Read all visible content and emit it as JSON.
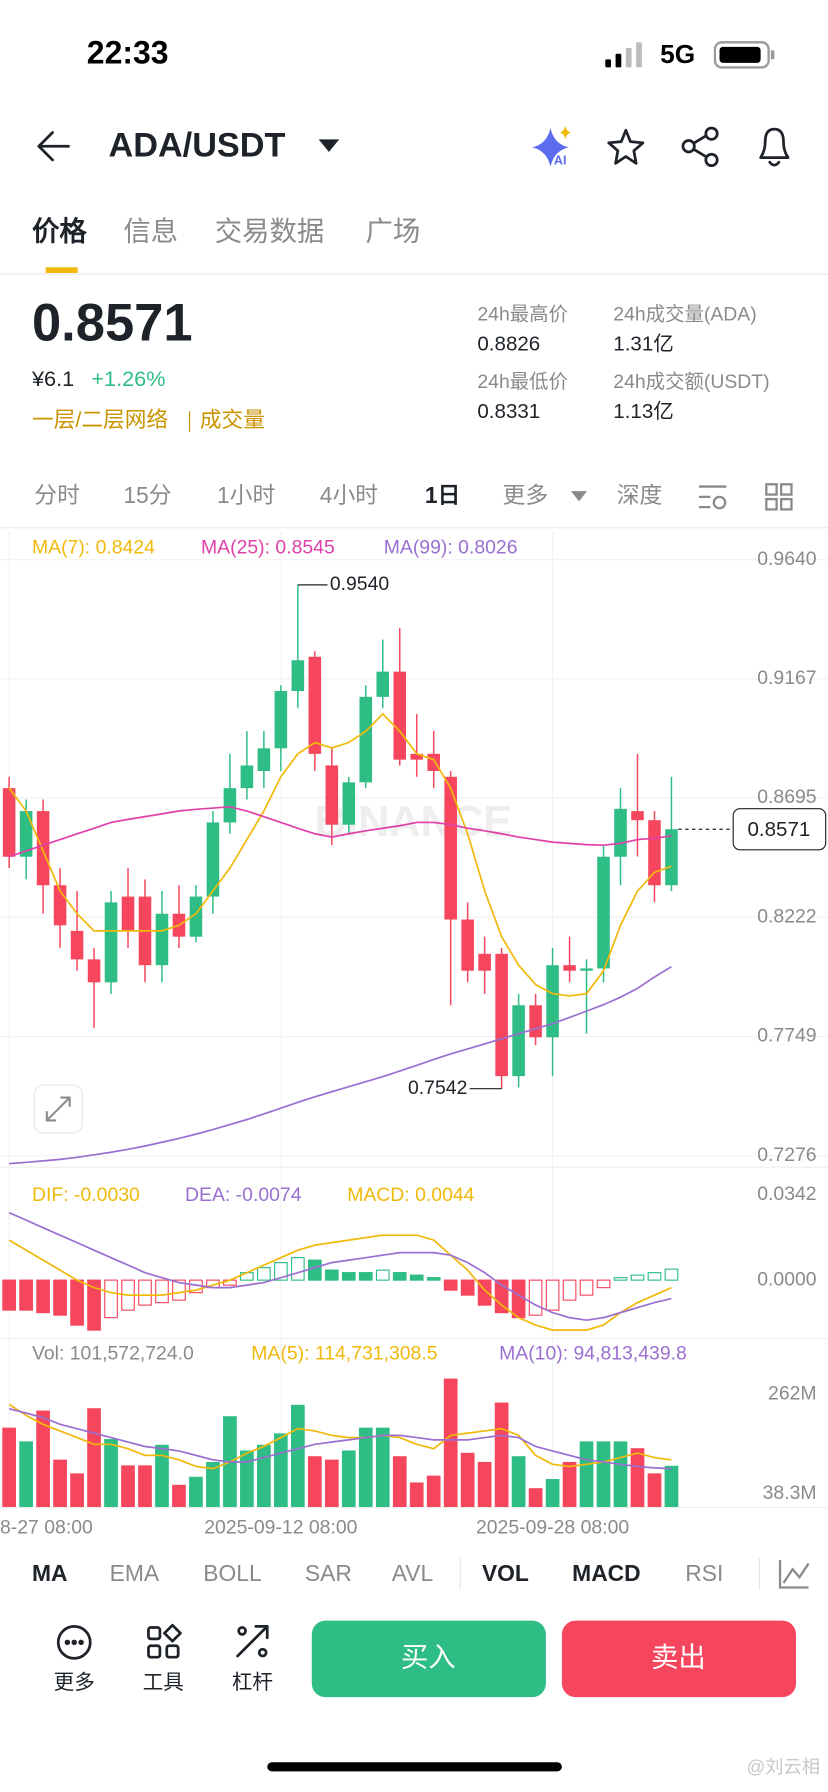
{
  "status_bar": {
    "time": "22:33",
    "network": "5G"
  },
  "header": {
    "pair": "ADA/USDT"
  },
  "tabs": [
    "价格",
    "信息",
    "交易数据",
    "广场"
  ],
  "ticker": {
    "price": "0.8571",
    "cny": "¥6.1",
    "change": "+1.26%",
    "tags": [
      "一层/二层网络",
      "成交量"
    ],
    "stats": [
      {
        "label": "24h最高价",
        "value": "0.8826"
      },
      {
        "label": "24h成交量(ADA)",
        "value": "1.31亿"
      },
      {
        "label": "24h最低价",
        "value": "0.8331"
      },
      {
        "label": "24h成交额(USDT)",
        "value": "1.13亿"
      }
    ]
  },
  "intervals": [
    "分时",
    "15分",
    "1小时",
    "4小时",
    "1日",
    "更多",
    "深度"
  ],
  "watermark": "BINANCE",
  "chart_data": [
    {
      "type": "candlestick",
      "up_color": "#2ebd85",
      "down_color": "#f6465d",
      "open": [
        0.8734,
        0.8462,
        0.8643,
        0.8349,
        0.8168,
        0.8055,
        0.7964,
        0.8304,
        0.8304,
        0.8032,
        0.8236,
        0.8145,
        0.8304,
        0.8598,
        0.8734,
        0.8802,
        0.8892,
        0.9119,
        0.9255,
        0.8824,
        0.8589,
        0.8757,
        0.9096,
        0.9196,
        0.887,
        0.887,
        0.8779,
        0.8213,
        0.8077,
        0.8077,
        0.7592,
        0.7873,
        0.7746,
        0.8032,
        0.801,
        0.8019,
        0.8462,
        0.8643,
        0.8607,
        0.8349
      ],
      "high": [
        0.8779,
        0.8689,
        0.8689,
        0.8417,
        0.8326,
        0.81,
        0.8326,
        0.8417,
        0.8372,
        0.8326,
        0.8349,
        0.8349,
        0.8643,
        0.887,
        0.896,
        0.896,
        0.9142,
        0.954,
        0.9277,
        0.8892,
        0.8779,
        0.9142,
        0.9323,
        0.9368,
        0.9028,
        0.896,
        0.8802,
        0.8281,
        0.8145,
        0.81,
        0.7918,
        0.7918,
        0.81,
        0.8145,
        0.8055,
        0.8508,
        0.8734,
        0.887,
        0.8643,
        0.8779
      ],
      "low": [
        0.8417,
        0.8372,
        0.8236,
        0.81,
        0.801,
        0.7783,
        0.7918,
        0.81,
        0.7964,
        0.7964,
        0.81,
        0.8123,
        0.8236,
        0.8553,
        0.8689,
        0.8734,
        0.8802,
        0.9051,
        0.8802,
        0.8508,
        0.8553,
        0.8734,
        0.9051,
        0.8824,
        0.8779,
        0.8734,
        0.7873,
        0.7964,
        0.7918,
        0.7542,
        0.7547,
        0.7715,
        0.7592,
        0.7964,
        0.776,
        0.7964,
        0.8349,
        0.8463,
        0.8281,
        0.8326
      ],
      "close": [
        0.8462,
        0.8643,
        0.8349,
        0.819,
        0.8055,
        0.7964,
        0.8281,
        0.8168,
        0.8032,
        0.8236,
        0.8145,
        0.8304,
        0.8598,
        0.8734,
        0.8824,
        0.8892,
        0.9119,
        0.9241,
        0.887,
        0.8589,
        0.8757,
        0.9096,
        0.9196,
        0.8847,
        0.8847,
        0.8802,
        0.8213,
        0.801,
        0.801,
        0.7592,
        0.7873,
        0.7746,
        0.8032,
        0.801,
        0.8019,
        0.8462,
        0.8652,
        0.8607,
        0.8349,
        0.8571
      ],
      "series": [
        {
          "name": "MA(7): 0.8424",
          "color": "#f0b90b",
          "values": [
            0.8734,
            0.8643,
            0.8485,
            0.8326,
            0.8236,
            0.8168,
            0.8168,
            0.8168,
            0.8168,
            0.8168,
            0.819,
            0.8236,
            0.8326,
            0.8417,
            0.853,
            0.8643,
            0.8779,
            0.887,
            0.8915,
            0.8893,
            0.8915,
            0.896,
            0.9028,
            0.896,
            0.887,
            0.8847,
            0.8734,
            0.8553,
            0.8326,
            0.8145,
            0.8032,
            0.7955,
            0.7919,
            0.791,
            0.7919,
            0.8009,
            0.819,
            0.8326,
            0.84,
            0.8424
          ]
        },
        {
          "name": "MA(25): 0.8545",
          "color": "#e040a8",
          "values": [
            0.8462,
            0.8485,
            0.8508,
            0.853,
            0.8553,
            0.8575,
            0.8598,
            0.861,
            0.8621,
            0.8632,
            0.8643,
            0.865,
            0.8655,
            0.866,
            0.8643,
            0.8621,
            0.8598,
            0.8575,
            0.8553,
            0.854,
            0.8553,
            0.8565,
            0.8575,
            0.8585,
            0.8598,
            0.8598,
            0.859,
            0.8575,
            0.8565,
            0.8553,
            0.854,
            0.853,
            0.852,
            0.8515,
            0.851,
            0.8508,
            0.8515,
            0.853,
            0.8535,
            0.8545
          ]
        },
        {
          "name": "MA(99): 0.8026",
          "color": "#9b6fd1",
          "values": [
            0.7245,
            0.725,
            0.7256,
            0.7262,
            0.727,
            0.728,
            0.729,
            0.7302,
            0.7315,
            0.733,
            0.7345,
            0.7362,
            0.738,
            0.74,
            0.742,
            0.7442,
            0.7465,
            0.7488,
            0.751,
            0.753,
            0.755,
            0.757,
            0.759,
            0.7612,
            0.7635,
            0.7658,
            0.768,
            0.77,
            0.772,
            0.774,
            0.776,
            0.778,
            0.78,
            0.7825,
            0.785,
            0.7875,
            0.7905,
            0.794,
            0.7985,
            0.8026
          ]
        }
      ],
      "ylim": [
        0.7276,
        0.964
      ],
      "yticks": [
        {
          "value": 0.964,
          "label": "0.9640"
        },
        {
          "value": 0.9167,
          "label": "0.9167"
        },
        {
          "value": 0.8695,
          "label": "0.8695"
        },
        {
          "value": 0.8222,
          "label": "0.8222"
        },
        {
          "value": 0.7749,
          "label": "0.7749"
        },
        {
          "value": 0.7276,
          "label": "0.7276"
        }
      ],
      "xticks": [
        {
          "value": 0,
          "label": "8-27 08:00"
        },
        {
          "value": 16,
          "label": "2025-09-12 08:00"
        },
        {
          "value": 32,
          "label": "2025-09-28 08:00"
        }
      ],
      "last_price": {
        "value": 0.8571,
        "label": "0.8571"
      },
      "annotations": [
        {
          "index": 17,
          "value": 0.954,
          "label": "0.9540"
        },
        {
          "index": 29,
          "value": 0.7542,
          "label": "0.7542"
        }
      ]
    },
    {
      "type": "macd",
      "values": [
        -0.012,
        -0.012,
        -0.013,
        -0.014,
        -0.018,
        -0.02,
        -0.015,
        -0.012,
        -0.01,
        -0.009,
        -0.008,
        -0.005,
        -0.003,
        -0.002,
        0.003,
        0.005,
        0.007,
        0.009,
        0.008,
        0.004,
        0.003,
        0.003,
        0.004,
        0.003,
        0.002,
        0.001,
        -0.004,
        -0.006,
        -0.01,
        -0.013,
        -0.015,
        -0.014,
        -0.012,
        -0.008,
        -0.006,
        -0.003,
        0.001,
        0.002,
        0.003,
        0.0044
      ],
      "series": [
        {
          "name": "DIF: -0.0030",
          "color": "#f0b90b",
          "values": [
            0.016,
            0.012,
            0.008,
            0.004,
            0.0,
            -0.003,
            -0.005,
            -0.006,
            -0.006,
            -0.006,
            -0.005,
            -0.004,
            -0.002,
            0.0,
            0.003,
            0.006,
            0.009,
            0.012,
            0.014,
            0.015,
            0.016,
            0.017,
            0.018,
            0.018,
            0.018,
            0.016,
            0.01,
            0.004,
            -0.004,
            -0.01,
            -0.015,
            -0.018,
            -0.02,
            -0.02,
            -0.02,
            -0.018,
            -0.013,
            -0.009,
            -0.006,
            -0.003
          ]
        },
        {
          "name": "DEA: -0.0074",
          "color": "#9b6fd1",
          "values": [
            0.027,
            0.024,
            0.021,
            0.018,
            0.015,
            0.012,
            0.009,
            0.006,
            0.003,
            0.001,
            -0.001,
            -0.002,
            -0.003,
            -0.003,
            -0.002,
            -0.001,
            0.001,
            0.003,
            0.005,
            0.007,
            0.008,
            0.009,
            0.01,
            0.011,
            0.011,
            0.011,
            0.01,
            0.007,
            0.003,
            -0.002,
            -0.006,
            -0.01,
            -0.013,
            -0.015,
            -0.016,
            -0.015,
            -0.013,
            -0.011,
            -0.009,
            -0.0074
          ]
        }
      ],
      "legend": "MACD: 0.0044",
      "ylim": [
        -0.022,
        0.0342
      ],
      "yticks": [
        {
          "value": 0.0342,
          "label": "0.0342"
        },
        {
          "value": 0,
          "label": "0.0000"
        }
      ]
    },
    {
      "type": "volume",
      "label": "Vol: 101,572,724.0",
      "values": [
        187400000,
        156500000,
        225900000,
        115400000,
        84500000,
        231100000,
        161700000,
        102500000,
        102500000,
        148800000,
        58800000,
        76800000,
        110200000,
        213100000,
        136000000,
        148800000,
        174500000,
        238800000,
        123100000,
        115400000,
        136000000,
        187400000,
        187400000,
        123100000,
        64000000,
        79400000,
        297900000,
        130800000,
        110200000,
        243900000,
        123100000,
        51100000,
        71700000,
        110200000,
        156500000,
        156500000,
        156500000,
        141100000,
        84500000,
        101572724
      ],
      "series": [
        {
          "name": "MA(5): 114,731,308.5",
          "color": "#f0b90b",
          "values": [
            240000000,
            215000000,
            195000000,
            180000000,
            165000000,
            150000000,
            150000000,
            140000000,
            125000000,
            125000000,
            115000000,
            100000000,
            95000000,
            110000000,
            130000000,
            145000000,
            165000000,
            185000000,
            180000000,
            170000000,
            165000000,
            165000000,
            170000000,
            165000000,
            150000000,
            140000000,
            170000000,
            175000000,
            180000000,
            185000000,
            170000000,
            125000000,
            105000000,
            100000000,
            105000000,
            110000000,
            120000000,
            130000000,
            120000000,
            114731308.5
          ]
        },
        {
          "name": "MA(10): 94,813,439.8",
          "color": "#9b6fd1",
          "values": [
            230000000,
            220000000,
            210000000,
            195000000,
            185000000,
            175000000,
            165000000,
            155000000,
            145000000,
            140000000,
            135000000,
            125000000,
            115000000,
            110000000,
            110000000,
            120000000,
            130000000,
            140000000,
            150000000,
            155000000,
            160000000,
            165000000,
            170000000,
            170000000,
            165000000,
            160000000,
            160000000,
            160000000,
            165000000,
            170000000,
            165000000,
            145000000,
            135000000,
            125000000,
            115000000,
            110000000,
            105000000,
            100000000,
            97000000,
            94813439.8
          ]
        }
      ],
      "ylim": [
        7440000,
        316000000
      ],
      "yticks": [
        {
          "value": 262000000,
          "label": "262M"
        },
        {
          "value": 38300000,
          "label": "38.3M"
        }
      ]
    }
  ],
  "indicator_tabs": [
    "MA",
    "EMA",
    "BOLL",
    "SAR",
    "AVL",
    "VOL",
    "MACD",
    "RSI"
  ],
  "actions": [
    "更多",
    "工具",
    "杠杆"
  ],
  "buy": "买入",
  "sell": "卖出",
  "credit": "@刘云相"
}
